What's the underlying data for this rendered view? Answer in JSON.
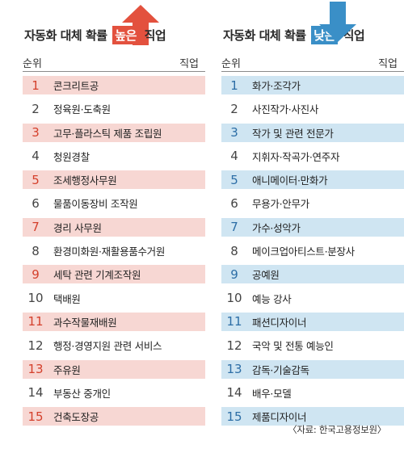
{
  "colors": {
    "high_accent": "#e3513e",
    "high_row": "#f7d7d3",
    "low_accent": "#3a8fc7",
    "low_row": "#cfe5f2"
  },
  "left": {
    "title_prefix": "자동화 대체 확률",
    "title_highlight": "높은",
    "title_suffix": "직업",
    "arrow_icon": "up-arrow-icon",
    "rank_header": "순위",
    "job_header": "직업",
    "rows": [
      {
        "rank": "1",
        "job": "콘크리트공"
      },
      {
        "rank": "2",
        "job": "정육원·도축원"
      },
      {
        "rank": "3",
        "job": "고무·플라스틱 제품 조립원"
      },
      {
        "rank": "4",
        "job": "청원경찰"
      },
      {
        "rank": "5",
        "job": "조세행정사무원"
      },
      {
        "rank": "6",
        "job": "물품이동장비 조작원"
      },
      {
        "rank": "7",
        "job": "경리 사무원"
      },
      {
        "rank": "8",
        "job": "환경미화원·재활용품수거원"
      },
      {
        "rank": "9",
        "job": "세탁 관련 기계조작원"
      },
      {
        "rank": "10",
        "job": "택배원"
      },
      {
        "rank": "11",
        "job": "과수작물재배원"
      },
      {
        "rank": "12",
        "job": "행정·경영지원 관련 서비스"
      },
      {
        "rank": "13",
        "job": "주유원"
      },
      {
        "rank": "14",
        "job": "부동산 중개인"
      },
      {
        "rank": "15",
        "job": "건축도장공"
      }
    ]
  },
  "right": {
    "title_prefix": "자동화 대체 확률",
    "title_highlight": "낮은",
    "title_suffix": "직업",
    "arrow_icon": "down-arrow-icon",
    "rank_header": "순위",
    "job_header": "직업",
    "rows": [
      {
        "rank": "1",
        "job": "화가·조각가"
      },
      {
        "rank": "2",
        "job": "사진작가·사진사"
      },
      {
        "rank": "3",
        "job": "작가 및 관련 전문가"
      },
      {
        "rank": "4",
        "job": "지휘자·작곡가·연주자"
      },
      {
        "rank": "5",
        "job": "애니메이터·만화가"
      },
      {
        "rank": "6",
        "job": "무용가·안무가"
      },
      {
        "rank": "7",
        "job": "가수·성악가"
      },
      {
        "rank": "8",
        "job": "메이크업아티스트·분장사"
      },
      {
        "rank": "9",
        "job": "공예원"
      },
      {
        "rank": "10",
        "job": "예능 강사"
      },
      {
        "rank": "11",
        "job": "패션디자이너"
      },
      {
        "rank": "12",
        "job": "국악 및 전통 예능인"
      },
      {
        "rank": "13",
        "job": "감독·기술감독"
      },
      {
        "rank": "14",
        "job": "배우·모델"
      },
      {
        "rank": "15",
        "job": "제품디자이너"
      }
    ]
  },
  "source": "〈자료: 한국고용정보원〉"
}
